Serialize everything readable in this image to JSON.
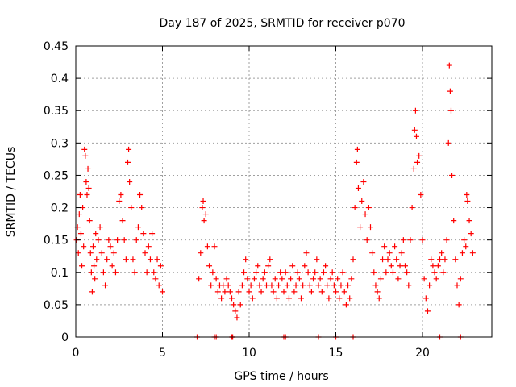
{
  "chart_data": {
    "type": "scatter",
    "title": "Day 187 of 2025, SRMTID for receiver p070",
    "xlabel": "GPS time / hours",
    "ylabel": "SRMTID / TECUs",
    "xlim": [
      0,
      24
    ],
    "ylim": [
      0,
      0.45
    ],
    "xticks": [
      0,
      5,
      10,
      15,
      20
    ],
    "xtick_labels": [
      "0",
      "5",
      "10",
      "15",
      "20"
    ],
    "yticks": [
      0,
      0.05,
      0.1,
      0.15,
      0.2,
      0.25,
      0.3,
      0.35,
      0.4,
      0.45
    ],
    "ytick_labels": [
      "0",
      "0.05",
      "0.1",
      "0.15",
      "0.2",
      "0.25",
      "0.3",
      "0.35",
      "0.4",
      "0.45"
    ],
    "grid": true,
    "marker": "plus",
    "color": "#ff0000",
    "series": [
      {
        "name": "SRMTID",
        "points": [
          [
            0.05,
            0.15
          ],
          [
            0.1,
            0.17
          ],
          [
            0.15,
            0.13
          ],
          [
            0.2,
            0.19
          ],
          [
            0.25,
            0.22
          ],
          [
            0.3,
            0.16
          ],
          [
            0.35,
            0.11
          ],
          [
            0.4,
            0.2
          ],
          [
            0.45,
            0.14
          ],
          [
            0.5,
            0.29
          ],
          [
            0.55,
            0.28
          ],
          [
            0.6,
            0.24
          ],
          [
            0.65,
            0.22
          ],
          [
            0.7,
            0.26
          ],
          [
            0.75,
            0.23
          ],
          [
            0.8,
            0.18
          ],
          [
            0.85,
            0.13
          ],
          [
            0.9,
            0.1
          ],
          [
            0.95,
            0.07
          ],
          [
            1.0,
            0.14
          ],
          [
            1.05,
            0.11
          ],
          [
            1.1,
            0.09
          ],
          [
            1.15,
            0.16
          ],
          [
            1.2,
            0.12
          ],
          [
            1.3,
            0.15
          ],
          [
            1.4,
            0.17
          ],
          [
            1.5,
            0.13
          ],
          [
            1.6,
            0.1
          ],
          [
            1.7,
            0.08
          ],
          [
            1.8,
            0.12
          ],
          [
            1.9,
            0.15
          ],
          [
            2.0,
            0.14
          ],
          [
            2.1,
            0.11
          ],
          [
            2.2,
            0.13
          ],
          [
            2.3,
            0.1
          ],
          [
            2.4,
            0.15
          ],
          [
            2.5,
            0.21
          ],
          [
            2.6,
            0.22
          ],
          [
            2.7,
            0.18
          ],
          [
            2.8,
            0.15
          ],
          [
            2.9,
            0.12
          ],
          [
            3.0,
            0.27
          ],
          [
            3.05,
            0.29
          ],
          [
            3.1,
            0.24
          ],
          [
            3.2,
            0.2
          ],
          [
            3.3,
            0.12
          ],
          [
            3.4,
            0.1
          ],
          [
            3.5,
            0.15
          ],
          [
            3.6,
            0.17
          ],
          [
            3.7,
            0.22
          ],
          [
            3.8,
            0.2
          ],
          [
            3.9,
            0.16
          ],
          [
            4.0,
            0.13
          ],
          [
            4.1,
            0.1
          ],
          [
            4.2,
            0.14
          ],
          [
            4.3,
            0.12
          ],
          [
            4.4,
            0.16
          ],
          [
            4.5,
            0.1
          ],
          [
            4.6,
            0.09
          ],
          [
            4.7,
            0.12
          ],
          [
            4.8,
            0.08
          ],
          [
            4.9,
            0.11
          ],
          [
            5.0,
            0.07
          ],
          [
            7.1,
            0.09
          ],
          [
            7.2,
            0.13
          ],
          [
            7.3,
            0.2
          ],
          [
            7.35,
            0.21
          ],
          [
            7.4,
            0.18
          ],
          [
            7.5,
            0.19
          ],
          [
            7.6,
            0.14
          ],
          [
            7.7,
            0.11
          ],
          [
            7.8,
            0.08
          ],
          [
            7.9,
            0.1
          ],
          [
            8.0,
            0.14
          ],
          [
            8.1,
            0.09
          ],
          [
            8.2,
            0.07
          ],
          [
            8.3,
            0.08
          ],
          [
            8.4,
            0.06
          ],
          [
            8.5,
            0.08
          ],
          [
            8.6,
            0.07
          ],
          [
            8.7,
            0.09
          ],
          [
            8.8,
            0.08
          ],
          [
            8.9,
            0.07
          ],
          [
            9.0,
            0.06
          ],
          [
            9.1,
            0.05
          ],
          [
            9.2,
            0.04
          ],
          [
            9.3,
            0.03
          ],
          [
            9.4,
            0.07
          ],
          [
            9.5,
            0.05
          ],
          [
            9.6,
            0.08
          ],
          [
            9.7,
            0.1
          ],
          [
            9.8,
            0.12
          ],
          [
            9.9,
            0.09
          ],
          [
            10.0,
            0.07
          ],
          [
            10.1,
            0.08
          ],
          [
            10.2,
            0.06
          ],
          [
            10.3,
            0.09
          ],
          [
            10.4,
            0.1
          ],
          [
            10.5,
            0.11
          ],
          [
            10.6,
            0.08
          ],
          [
            10.7,
            0.07
          ],
          [
            10.8,
            0.09
          ],
          [
            10.9,
            0.1
          ],
          [
            11.0,
            0.08
          ],
          [
            11.1,
            0.11
          ],
          [
            11.2,
            0.12
          ],
          [
            11.3,
            0.08
          ],
          [
            11.4,
            0.07
          ],
          [
            11.5,
            0.09
          ],
          [
            11.6,
            0.06
          ],
          [
            11.7,
            0.08
          ],
          [
            11.8,
            0.1
          ],
          [
            11.9,
            0.09
          ],
          [
            12.0,
            0.07
          ],
          [
            12.1,
            0.1
          ],
          [
            12.2,
            0.08
          ],
          [
            12.3,
            0.06
          ],
          [
            12.4,
            0.09
          ],
          [
            12.5,
            0.11
          ],
          [
            12.6,
            0.07
          ],
          [
            12.7,
            0.08
          ],
          [
            12.8,
            0.1
          ],
          [
            12.9,
            0.09
          ],
          [
            13.0,
            0.06
          ],
          [
            13.1,
            0.08
          ],
          [
            13.2,
            0.11
          ],
          [
            13.3,
            0.13
          ],
          [
            13.4,
            0.1
          ],
          [
            13.5,
            0.08
          ],
          [
            13.6,
            0.07
          ],
          [
            13.7,
            0.09
          ],
          [
            13.8,
            0.1
          ],
          [
            13.9,
            0.12
          ],
          [
            14.0,
            0.08
          ],
          [
            14.1,
            0.09
          ],
          [
            14.2,
            0.07
          ],
          [
            14.3,
            0.1
          ],
          [
            14.4,
            0.11
          ],
          [
            14.5,
            0.08
          ],
          [
            14.6,
            0.06
          ],
          [
            14.7,
            0.09
          ],
          [
            14.8,
            0.1
          ],
          [
            14.9,
            0.08
          ],
          [
            15.0,
            0.07
          ],
          [
            15.1,
            0.09
          ],
          [
            15.2,
            0.06
          ],
          [
            15.3,
            0.08
          ],
          [
            15.4,
            0.1
          ],
          [
            15.5,
            0.07
          ],
          [
            15.6,
            0.05
          ],
          [
            15.7,
            0.08
          ],
          [
            15.8,
            0.06
          ],
          [
            15.9,
            0.09
          ],
          [
            16.0,
            0.12
          ],
          [
            16.1,
            0.2
          ],
          [
            16.2,
            0.27
          ],
          [
            16.25,
            0.29
          ],
          [
            16.3,
            0.23
          ],
          [
            16.4,
            0.17
          ],
          [
            16.5,
            0.21
          ],
          [
            16.6,
            0.24
          ],
          [
            16.7,
            0.19
          ],
          [
            16.8,
            0.15
          ],
          [
            16.9,
            0.2
          ],
          [
            17.0,
            0.17
          ],
          [
            17.1,
            0.13
          ],
          [
            17.2,
            0.1
          ],
          [
            17.3,
            0.08
          ],
          [
            17.4,
            0.07
          ],
          [
            17.5,
            0.06
          ],
          [
            17.6,
            0.09
          ],
          [
            17.7,
            0.12
          ],
          [
            17.8,
            0.14
          ],
          [
            17.9,
            0.1
          ],
          [
            18.0,
            0.12
          ],
          [
            18.1,
            0.13
          ],
          [
            18.2,
            0.11
          ],
          [
            18.3,
            0.1
          ],
          [
            18.4,
            0.14
          ],
          [
            18.5,
            0.12
          ],
          [
            18.6,
            0.09
          ],
          [
            18.7,
            0.11
          ],
          [
            18.8,
            0.13
          ],
          [
            18.9,
            0.15
          ],
          [
            19.0,
            0.11
          ],
          [
            19.1,
            0.1
          ],
          [
            19.2,
            0.08
          ],
          [
            19.3,
            0.15
          ],
          [
            19.4,
            0.2
          ],
          [
            19.5,
            0.26
          ],
          [
            19.55,
            0.32
          ],
          [
            19.6,
            0.35
          ],
          [
            19.65,
            0.31
          ],
          [
            19.7,
            0.27
          ],
          [
            19.8,
            0.28
          ],
          [
            19.9,
            0.22
          ],
          [
            20.0,
            0.15
          ],
          [
            20.1,
            0.09
          ],
          [
            20.2,
            0.06
          ],
          [
            20.3,
            0.04
          ],
          [
            20.4,
            0.08
          ],
          [
            20.5,
            0.12
          ],
          [
            20.6,
            0.11
          ],
          [
            20.7,
            0.1
          ],
          [
            20.8,
            0.09
          ],
          [
            20.9,
            0.11
          ],
          [
            21.0,
            0.12
          ],
          [
            21.1,
            0.13
          ],
          [
            21.2,
            0.1
          ],
          [
            21.3,
            0.12
          ],
          [
            21.4,
            0.15
          ],
          [
            21.5,
            0.3
          ],
          [
            21.55,
            0.42
          ],
          [
            21.6,
            0.38
          ],
          [
            21.65,
            0.35
          ],
          [
            21.7,
            0.25
          ],
          [
            21.8,
            0.18
          ],
          [
            21.9,
            0.12
          ],
          [
            22.0,
            0.08
          ],
          [
            22.1,
            0.05
          ],
          [
            22.2,
            0.09
          ],
          [
            22.3,
            0.13
          ],
          [
            22.4,
            0.15
          ],
          [
            22.5,
            0.14
          ],
          [
            22.55,
            0.22
          ],
          [
            22.6,
            0.21
          ],
          [
            22.7,
            0.18
          ],
          [
            22.8,
            0.16
          ],
          [
            22.9,
            0.13
          ],
          [
            7.0,
            0.0
          ],
          [
            8.0,
            0.0
          ],
          [
            8.1,
            0.0
          ],
          [
            9.0,
            0.0
          ],
          [
            9.05,
            0.0
          ],
          [
            12.0,
            0.0
          ],
          [
            12.1,
            0.0
          ],
          [
            14.0,
            0.0
          ],
          [
            15.0,
            0.0
          ],
          [
            16.0,
            0.0
          ],
          [
            21.0,
            0.0
          ],
          [
            22.2,
            0.0
          ]
        ]
      }
    ]
  }
}
